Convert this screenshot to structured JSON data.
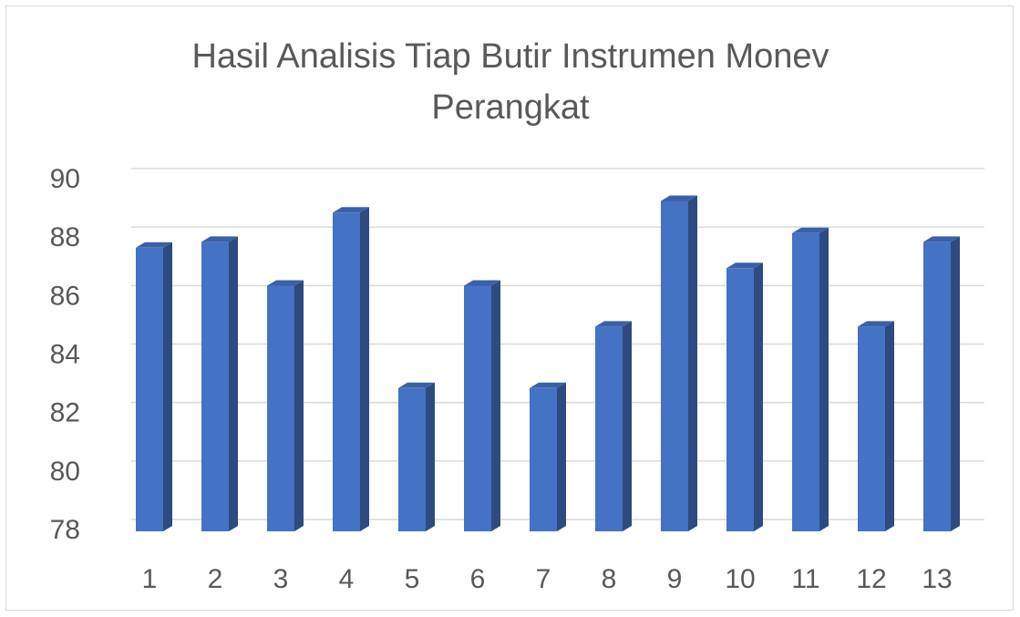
{
  "chart_data": {
    "type": "bar3d",
    "title": "Hasil Analisis Tiap Butir Instrumen Monev Perangkat",
    "categories": [
      "1",
      "2",
      "3",
      "4",
      "5",
      "6",
      "7",
      "8",
      "9",
      "10",
      "11",
      "12",
      "13"
    ],
    "values": [
      87.7,
      87.9,
      86.4,
      88.9,
      82.9,
      86.4,
      82.9,
      85,
      89.3,
      87,
      88.2,
      85,
      87.9
    ],
    "color": "#4472c4",
    "ylim": [
      78,
      90
    ],
    "yticks": [
      78,
      80,
      82,
      84,
      86,
      88,
      90
    ],
    "grid": true
  }
}
